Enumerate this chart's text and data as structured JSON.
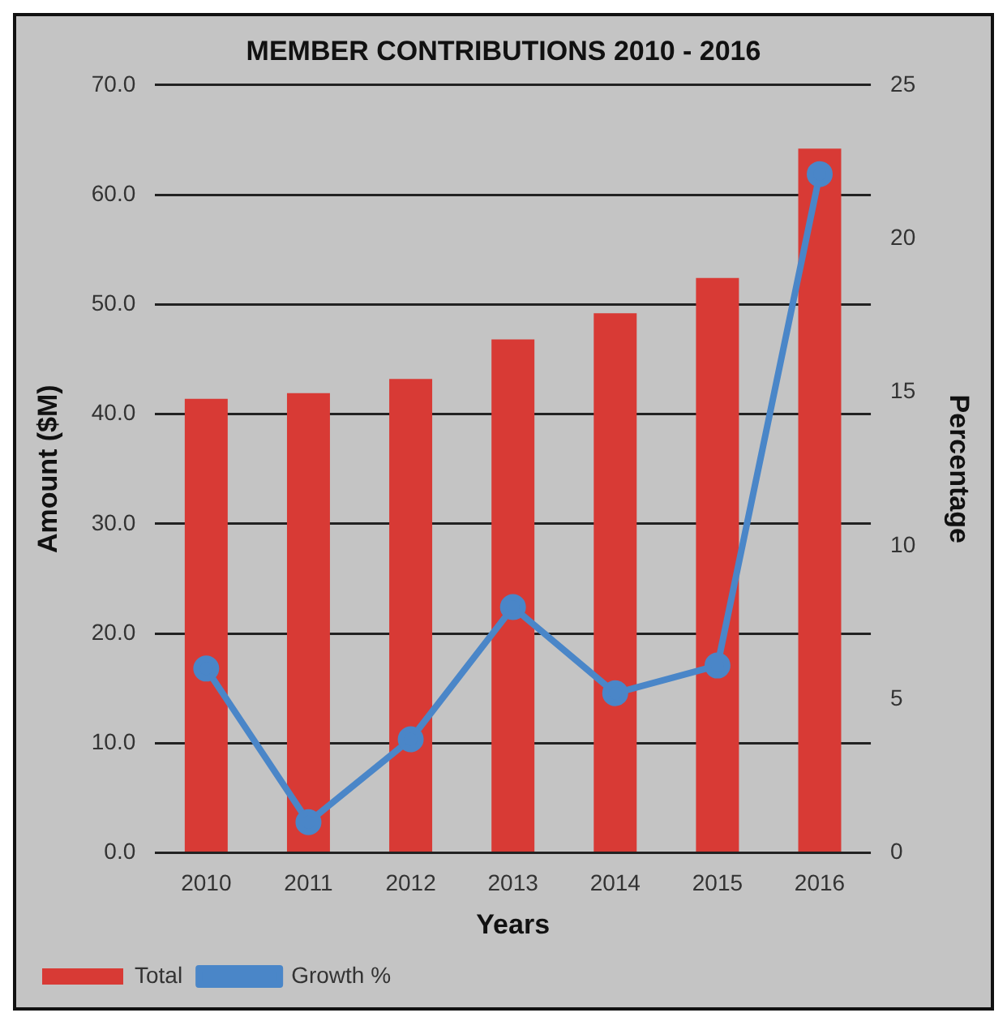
{
  "chart_data": {
    "type": "bar",
    "title": "MEMBER CONTRIBUTIONS 2010 - 2016",
    "xlabel": "Years",
    "ylabel": "Amount ($M)",
    "y2label": "Percentage",
    "categories": [
      "2010",
      "2011",
      "2012",
      "2013",
      "2014",
      "2015",
      "2016"
    ],
    "series": [
      {
        "name": "Total",
        "color": "#d83a35",
        "values": [
          41.4,
          41.9,
          43.2,
          46.8,
          49.2,
          52.4,
          64.2
        ]
      },
      {
        "name": "Growth %",
        "type": "line",
        "axis": "y2",
        "color": "#4a86c8",
        "values": [
          6.0,
          1.0,
          3.7,
          8.0,
          5.2,
          6.1,
          22.1
        ]
      }
    ],
    "ylim": [
      0,
      70
    ],
    "yticks": [
      {
        "value": 0,
        "label": "0.0"
      },
      {
        "value": 10,
        "label": "10.0"
      },
      {
        "value": 20,
        "label": "20.0"
      },
      {
        "value": 30,
        "label": "30.0"
      },
      {
        "value": 40,
        "label": "40.0"
      },
      {
        "value": 50,
        "label": "50.0"
      },
      {
        "value": 60,
        "label": "60.0"
      },
      {
        "value": 70,
        "label": "70.0"
      }
    ],
    "y2lim": [
      0,
      25
    ],
    "y2ticks": [
      0,
      5,
      10,
      15,
      20,
      25
    ],
    "grid": "y",
    "legend": "bottom left",
    "marker": "circle",
    "line_style": "solid"
  }
}
